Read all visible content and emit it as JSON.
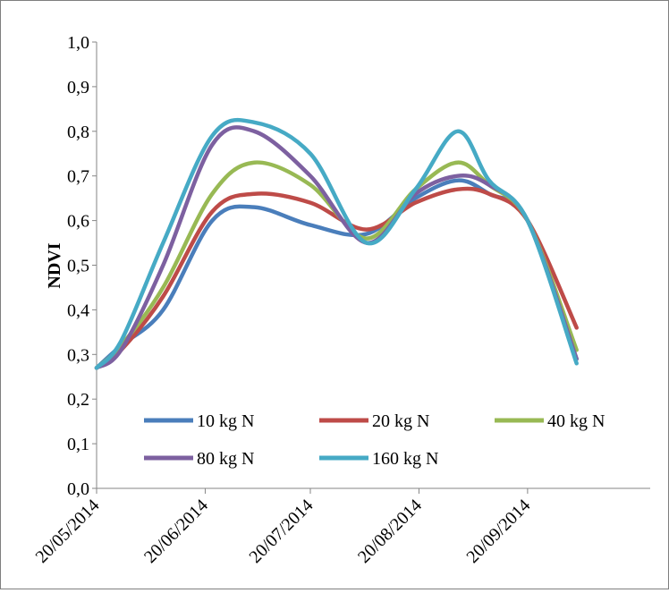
{
  "chart_data": {
    "type": "line",
    "title": "",
    "xlabel": "",
    "ylabel": "NDVI",
    "ylim": [
      0,
      1
    ],
    "y_ticks": [
      "0,0",
      "0,1",
      "0,2",
      "0,3",
      "0,4",
      "0,5",
      "0,6",
      "0,7",
      "0,8",
      "0,9",
      "1,0"
    ],
    "x_range": [
      "2014-05-20",
      "2014-10-25"
    ],
    "x_ticks": [
      {
        "date": "2014-05-20",
        "label": "20/05/2014"
      },
      {
        "date": "2014-06-20",
        "label": "20/06/2014"
      },
      {
        "date": "2014-07-20",
        "label": "20/07/2014"
      },
      {
        "date": "2014-08-20",
        "label": "20/08/2014"
      },
      {
        "date": "2014-09-20",
        "label": "20/09/2014"
      }
    ],
    "grid": false,
    "legend_position": "bottom-inside",
    "x": [
      "2014-05-20",
      "2014-05-27",
      "2014-06-08",
      "2014-06-22",
      "2014-07-04",
      "2014-07-20",
      "2014-08-05",
      "2014-08-19",
      "2014-08-31",
      "2014-09-09",
      "2014-09-20",
      "2014-10-04"
    ],
    "series": [
      {
        "name": "10 kg N",
        "color": "#4a7ebb",
        "values": [
          0.27,
          0.32,
          0.4,
          0.6,
          0.63,
          0.59,
          0.57,
          0.65,
          0.69,
          0.66,
          0.6,
          0.29
        ]
      },
      {
        "name": "20 kg N",
        "color": "#be4b48",
        "values": [
          0.27,
          0.31,
          0.43,
          0.62,
          0.66,
          0.64,
          0.58,
          0.64,
          0.67,
          0.66,
          0.6,
          0.36
        ]
      },
      {
        "name": "40 kg N",
        "color": "#98b954",
        "values": [
          0.27,
          0.32,
          0.45,
          0.66,
          0.73,
          0.68,
          0.56,
          0.67,
          0.73,
          0.68,
          0.6,
          0.31
        ]
      },
      {
        "name": "80 kg N",
        "color": "#7d60a0",
        "values": [
          0.27,
          0.31,
          0.5,
          0.77,
          0.8,
          0.7,
          0.55,
          0.66,
          0.7,
          0.68,
          0.6,
          0.29
        ]
      },
      {
        "name": "160 kg N",
        "color": "#46aac5",
        "values": [
          0.27,
          0.33,
          0.55,
          0.79,
          0.82,
          0.75,
          0.55,
          0.67,
          0.8,
          0.69,
          0.6,
          0.28
        ]
      }
    ]
  }
}
